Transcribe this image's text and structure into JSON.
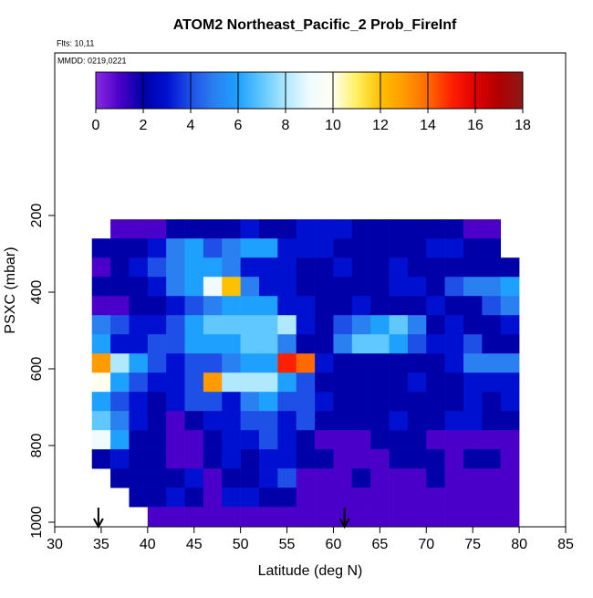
{
  "chart_data": {
    "type": "heatmap",
    "title": "ATOM2 Northeast_Pacific_2 Prob_FireInf",
    "subtitle": "Flts: 10,11",
    "annotation": "MMDD: 0219,0221",
    "xlabel": "Latitude (deg N)",
    "ylabel": "PSXC (mbar)",
    "xlim": [
      30,
      85
    ],
    "xticks": [
      30,
      35,
      40,
      45,
      50,
      55,
      60,
      65,
      70,
      75,
      80,
      85
    ],
    "ylim": [
      1012,
      -224
    ],
    "yticks": [
      200,
      400,
      600,
      800,
      1000
    ],
    "x_bins": [
      34,
      36,
      38,
      40,
      42,
      44,
      46,
      48,
      50,
      52,
      54,
      56,
      58,
      60,
      62,
      64,
      66,
      68,
      70,
      72,
      74,
      76,
      78,
      80
    ],
    "y_bins": [
      210,
      260,
      310,
      360,
      410,
      460,
      510,
      560,
      610,
      660,
      710,
      760,
      810,
      860,
      910,
      960,
      1010
    ],
    "values": [
      [
        null,
        1,
        1,
        1,
        2,
        2,
        2,
        2,
        3,
        2,
        2,
        3,
        3,
        3,
        2,
        2,
        2,
        2,
        2,
        2,
        1,
        1,
        null
      ],
      [
        2,
        2,
        2,
        3,
        5,
        6,
        4,
        5,
        6,
        6,
        3,
        3,
        3,
        2,
        2,
        2,
        2,
        2,
        3,
        3,
        2,
        2,
        null
      ],
      [
        1,
        2,
        3,
        4,
        5,
        6,
        6,
        5,
        3,
        3,
        3,
        2,
        2,
        3,
        2,
        2,
        3,
        2,
        2,
        2,
        2,
        2,
        2
      ],
      [
        2,
        2,
        2,
        3,
        5,
        6,
        9,
        12,
        5,
        3,
        3,
        2,
        2,
        2,
        2,
        2,
        3,
        3,
        2,
        4,
        5,
        5,
        6
      ],
      [
        1,
        1,
        2,
        2,
        3,
        4,
        5,
        6,
        6,
        6,
        3,
        3,
        2,
        2,
        3,
        2,
        2,
        2,
        3,
        2,
        2,
        4,
        5
      ],
      [
        5,
        4,
        3,
        3,
        4,
        6,
        7,
        7,
        7,
        7,
        8,
        3,
        2,
        4,
        5,
        6,
        7,
        5,
        2,
        3,
        2,
        2,
        3
      ],
      [
        6,
        3,
        3,
        4,
        4,
        6,
        6,
        6,
        7,
        7,
        5,
        2,
        2,
        5,
        7,
        7,
        6,
        4,
        3,
        3,
        4,
        2,
        2
      ],
      [
        13,
        8,
        6,
        4,
        3,
        4,
        4,
        5,
        6,
        6,
        15,
        14,
        3,
        2,
        2,
        2,
        2,
        2,
        2,
        3,
        5,
        5,
        5
      ],
      [
        10,
        6,
        4,
        3,
        3,
        4,
        13,
        8,
        8,
        8,
        6,
        4,
        2,
        2,
        2,
        2,
        2,
        3,
        2,
        2,
        3,
        3,
        3
      ],
      [
        6,
        4,
        3,
        2,
        3,
        4,
        4,
        3,
        5,
        6,
        4,
        4,
        3,
        2,
        2,
        2,
        2,
        2,
        2,
        2,
        3,
        2,
        3
      ],
      [
        7,
        5,
        3,
        2,
        1,
        2,
        3,
        3,
        4,
        4,
        3,
        4,
        2,
        2,
        2,
        2,
        3,
        2,
        2,
        3,
        3,
        2,
        2
      ],
      [
        9,
        6,
        2,
        2,
        1,
        1,
        2,
        3,
        3,
        4,
        3,
        2,
        1,
        1,
        1,
        2,
        2,
        2,
        1,
        1,
        1,
        1,
        1
      ],
      [
        2,
        3,
        2,
        2,
        1,
        1,
        2,
        3,
        2,
        3,
        3,
        2,
        2,
        1,
        1,
        1,
        2,
        2,
        2,
        1,
        2,
        2,
        1
      ],
      [
        null,
        2,
        2,
        2,
        2,
        3,
        1,
        2,
        2,
        3,
        4,
        1,
        1,
        1,
        2,
        1,
        1,
        1,
        2,
        1,
        1,
        1,
        1
      ],
      [
        null,
        null,
        2,
        2,
        3,
        2,
        1,
        3,
        3,
        2,
        2,
        1,
        1,
        1,
        1,
        1,
        1,
        1,
        1,
        1,
        1,
        1,
        1
      ],
      [
        null,
        null,
        null,
        1,
        1,
        1,
        1,
        1,
        1,
        1,
        1,
        1,
        1,
        1,
        1,
        1,
        1,
        1,
        1,
        1,
        1,
        1,
        1
      ]
    ],
    "colorbar_lim": [
      0,
      18
    ],
    "colorbar_ticks": [
      0,
      2,
      4,
      6,
      8,
      10,
      12,
      14,
      16,
      18
    ],
    "colors": [
      "#8a2be2",
      "#4a00c8",
      "#0000a8",
      "#0010d0",
      "#1e50e8",
      "#2a80f0",
      "#1ea0ff",
      "#60c8ff",
      "#b0e8ff",
      "#f0fbff",
      "#fffff0",
      "#fff060",
      "#ffc000",
      "#ff9a00",
      "#ff6a00",
      "#ff2000",
      "#e00000",
      "#b00000",
      "#8b1a1a"
    ],
    "arrows": [
      34.7,
      61.2
    ]
  }
}
